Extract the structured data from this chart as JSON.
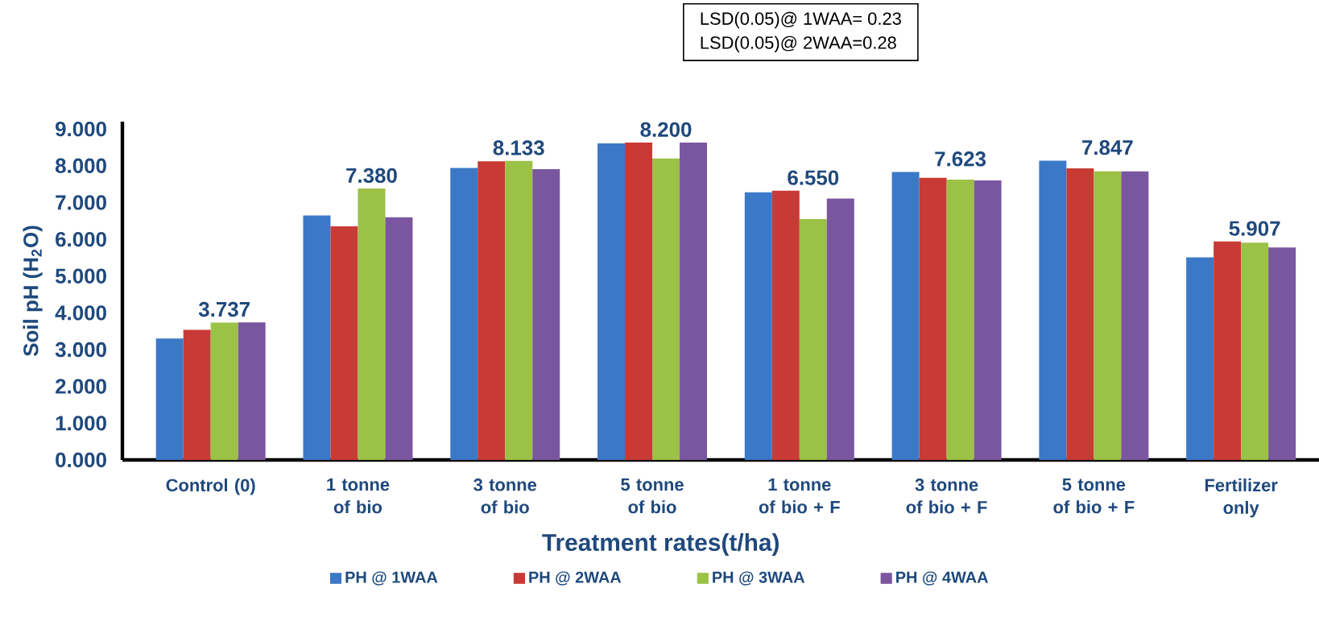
{
  "chart_data": {
    "type": "bar",
    "xlabel": "Treatment rates(t/ha)",
    "ylabel": "Soil pH (H$_{2}$O)",
    "categories": [
      "Control (0)",
      "1 tonne of bio",
      "3 tonne of bio",
      "5 tonne of bio",
      "1 tonne of bio + F",
      "3 tonne of bio + F",
      "5 tonne of bio + F",
      "Fertilizer only"
    ],
    "series": [
      {
        "name": "PH @ 1WAA",
        "color": "#3c78c8",
        "values": [
          3.3,
          6.65,
          7.94,
          8.61,
          7.28,
          7.83,
          8.14,
          5.51
        ]
      },
      {
        "name": "PH @ 2WAA",
        "color": "#c83a35",
        "values": [
          3.54,
          6.35,
          8.12,
          8.63,
          7.32,
          7.67,
          7.93,
          5.94
        ]
      },
      {
        "name": "PH @ 3WAA",
        "color": "#9bc146",
        "values": [
          3.737,
          7.38,
          8.133,
          8.2,
          6.55,
          7.623,
          7.847,
          5.907
        ],
        "value_labels": [
          "3.737",
          "7.380",
          "8.133",
          "8.200",
          "6.550",
          "7.623",
          "7.847",
          "5.907"
        ]
      },
      {
        "name": "PH @ 4WAA",
        "color": "#7a56a0",
        "values": [
          3.74,
          6.6,
          7.91,
          8.63,
          7.11,
          7.6,
          7.85,
          5.78
        ]
      }
    ],
    "ylim": [
      0,
      9.2
    ],
    "yticks": [
      {
        "value": 0,
        "label": "0.000"
      },
      {
        "value": 1,
        "label": "1.000"
      },
      {
        "value": 2,
        "label": "2.000"
      },
      {
        "value": 3,
        "label": "3.000"
      },
      {
        "value": 4,
        "label": "4.000"
      },
      {
        "value": 5,
        "label": "5.000"
      },
      {
        "value": 6,
        "label": "6.000"
      },
      {
        "value": 7,
        "label": "7.000"
      },
      {
        "value": 8,
        "label": "8.000"
      },
      {
        "value": 9,
        "label": "9.000"
      }
    ],
    "annotations": [
      "LSD(0.05)@ 1WAA= 0.23",
      "LSD(0.05)@ 2WAA=0.28"
    ],
    "grid": false,
    "legend": "bottom"
  }
}
